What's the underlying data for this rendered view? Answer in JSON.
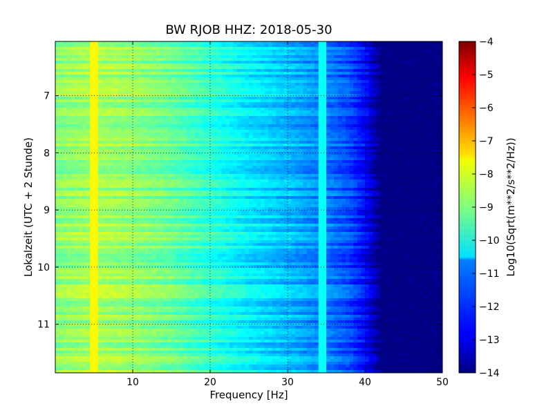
{
  "chart_data": {
    "type": "heatmap",
    "title": "BW RJOB HHZ: 2018-05-30",
    "xlabel": "Frequency [Hz]",
    "ylabel": "Lokalzeit (UTC + 2 Stunde)",
    "colorbar_label": "Log10(Sqrt(m**2/s**2/Hz))",
    "xlim": [
      0,
      50
    ],
    "ylim": [
      11.85,
      6.05
    ],
    "y_inverted": true,
    "x_ticks": [
      10,
      20,
      30,
      40,
      50
    ],
    "y_ticks": [
      7,
      8,
      9,
      10,
      11
    ],
    "color_range": [
      -14,
      -4
    ],
    "colorbar_ticks": [
      -4,
      -5,
      -6,
      -7,
      -8,
      -9,
      -10,
      -11,
      -12,
      -13,
      -14
    ],
    "colormap": "jet",
    "grid": true,
    "grid_style": "dotted",
    "spectral_profile": {
      "frequency_hz": [
        0,
        5,
        10,
        15,
        20,
        25,
        30,
        35,
        38,
        40,
        41,
        42,
        50
      ],
      "log10_amplitude": [
        -8.9,
        -8.6,
        -8.8,
        -9.2,
        -9.8,
        -10.4,
        -10.9,
        -11.5,
        -12.0,
        -12.7,
        -13.3,
        -14.0,
        -14.0
      ]
    },
    "spectral_lines": [
      {
        "frequency_hz": 5.0,
        "log10_amplitude": -7.7
      },
      {
        "frequency_hz": 34.5,
        "log10_amplitude": -10.2
      }
    ]
  }
}
